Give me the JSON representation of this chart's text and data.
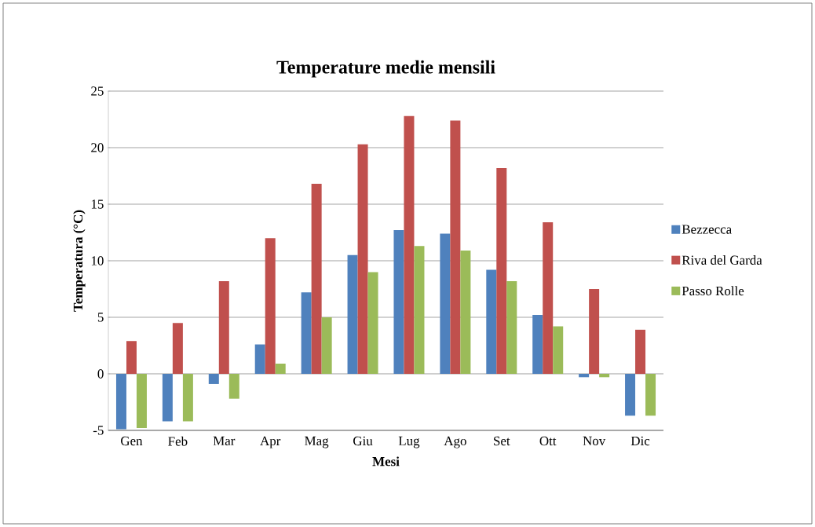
{
  "chart_data": {
    "type": "bar",
    "title": "Temperature medie mensili",
    "xlabel": "Mesi",
    "ylabel": "Temperatura (°C)",
    "categories": [
      "Gen",
      "Feb",
      "Mar",
      "Apr",
      "Mag",
      "Giu",
      "Lug",
      "Ago",
      "Set",
      "Ott",
      "Nov",
      "Dic"
    ],
    "series": [
      {
        "name": "Bezzecca",
        "color": "#4f81bd",
        "values": [
          -4.9,
          -4.2,
          -0.9,
          2.6,
          7.2,
          10.5,
          12.7,
          12.4,
          9.2,
          5.2,
          -0.3,
          -3.7
        ]
      },
      {
        "name": "Riva del Garda",
        "color": "#c0504d",
        "values": [
          2.9,
          4.5,
          8.2,
          12.0,
          16.8,
          20.3,
          22.8,
          22.4,
          18.2,
          13.4,
          7.5,
          3.9
        ]
      },
      {
        "name": "Passo Rolle",
        "color": "#9bbb59",
        "values": [
          -4.8,
          -4.2,
          -2.2,
          0.9,
          5.0,
          9.0,
          11.3,
          10.9,
          8.2,
          4.2,
          -0.3,
          -3.7
        ]
      }
    ],
    "ylim": [
      -5,
      25
    ],
    "yticks": [
      -5,
      0,
      5,
      10,
      15,
      20,
      25
    ],
    "grid": "y",
    "legend": "right"
  }
}
